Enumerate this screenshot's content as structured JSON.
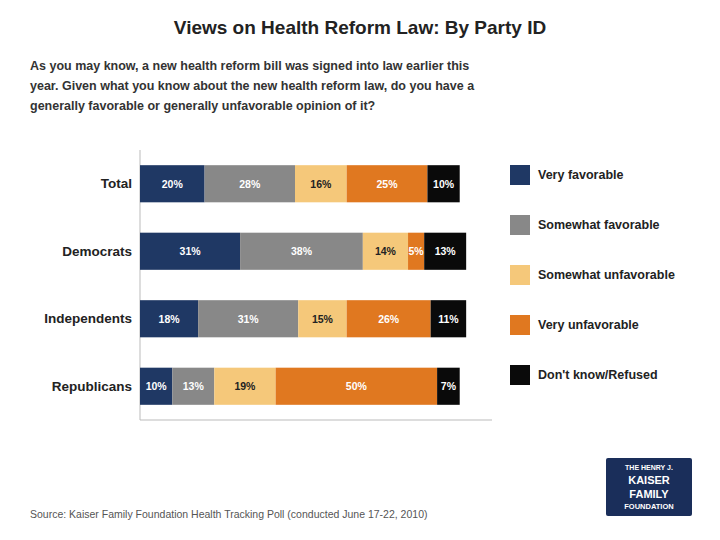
{
  "chart_data": {
    "type": "bar",
    "orientation": "horizontal",
    "stacked": true,
    "data_labels": true,
    "tick_labels": false,
    "grid": false,
    "title": "Views on Health Reform Law: By Party ID",
    "subtitle": [
      "As you may know, a new health reform bill was signed into law earlier this",
      "year. Given what you know about the new health reform law, do you have a",
      "generally favorable or generally unfavorable opinion of it?"
    ],
    "annotations": [
      "Source: Kaiser Family Foundation Health Tracking Poll (conducted June 17-22, 2010)",
      "THE HENRY J.",
      "KAISER",
      "FAMILY",
      "FOUNDATION"
    ],
    "categories": [
      "Total",
      "Democrats",
      "Independents",
      "Republicans"
    ],
    "xlim": [
      0,
      109
    ],
    "series": [
      {
        "name": "Very favorable",
        "color": "#1f3864",
        "values": [
          20,
          31,
          18,
          10
        ],
        "value_labels": [
          "20%",
          "31%",
          "18%",
          "10%"
        ]
      },
      {
        "name": "Somewhat favorable",
        "color": "#888888",
        "values": [
          28,
          38,
          31,
          13
        ],
        "value_labels": [
          "28%",
          "38%",
          "31%",
          "13%"
        ]
      },
      {
        "name": "Somewhat unfavorable",
        "color": "#f5c87a",
        "values": [
          16,
          14,
          15,
          19
        ],
        "value_labels": [
          "16%",
          "14%",
          "15%",
          "19%"
        ]
      },
      {
        "name": "Very unfavorable",
        "color": "#e07820",
        "values": [
          25,
          5,
          26,
          50
        ],
        "value_labels": [
          "25%",
          "5%",
          "26%",
          "50%"
        ]
      },
      {
        "name": "Don't know/Refused",
        "color": "#0a0a0a",
        "values": [
          10,
          13,
          11,
          7
        ],
        "value_labels": [
          "10%",
          "13%",
          "11%",
          "7%"
        ]
      }
    ]
  }
}
